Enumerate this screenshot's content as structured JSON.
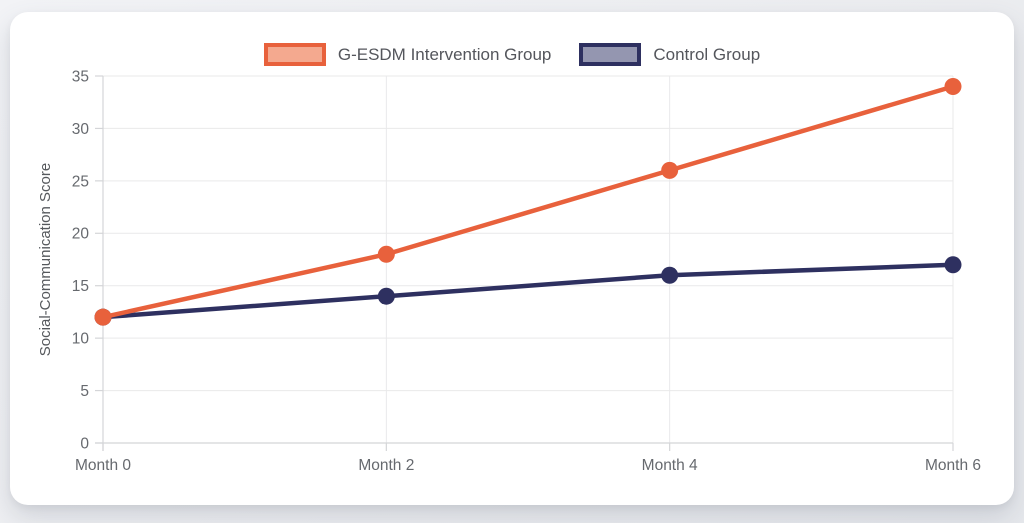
{
  "chart_data": {
    "type": "line",
    "categories": [
      "Month 0",
      "Month 2",
      "Month 4",
      "Month 6"
    ],
    "series": [
      {
        "name": "G-ESDM Intervention Group",
        "values": [
          12,
          18,
          26,
          34
        ],
        "color": "#e8613c",
        "legend_fill": "#f4a98f"
      },
      {
        "name": "Control Group",
        "values": [
          12,
          14,
          16,
          17
        ],
        "color": "#2e3060",
        "legend_fill": "#9496b0"
      }
    ],
    "title": "",
    "xlabel": "",
    "ylabel": "Social-Communication Score",
    "ylim": [
      0,
      35
    ],
    "yticks": [
      0,
      5,
      10,
      15,
      20,
      25,
      30,
      35
    ],
    "grid": true,
    "legend_position": "top"
  },
  "colors": {
    "grid_line": "#e9e9ea",
    "axis_line": "#d4d5d8",
    "tick_text": "#66696e",
    "axis_title_text": "#55585c",
    "card_background": "#ffffff",
    "page_background": "#ecedf0"
  }
}
